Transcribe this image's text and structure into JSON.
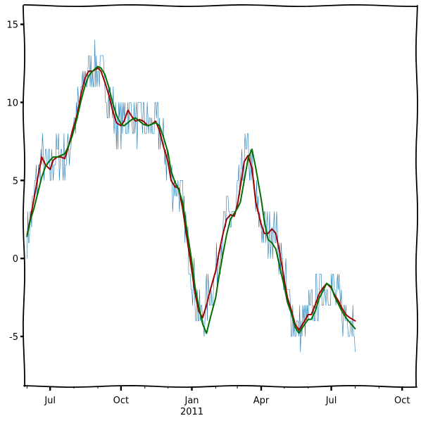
{
  "chart_data": {
    "type": "line",
    "style": "xkcd hand-drawn",
    "x_unit": "date",
    "x_start": "2010-05-28",
    "x_end": "2011-10-20",
    "xlim": [
      "2010-05-28",
      "2011-10-20"
    ],
    "ylim": [
      -8.2,
      16.2
    ],
    "grid": false,
    "legend": "none",
    "x_ticks": [
      {
        "date": "2010-07-01",
        "label": "Jul"
      },
      {
        "date": "2010-10-01",
        "label": "Oct"
      },
      {
        "date": "2011-01-01",
        "label": "Jan"
      },
      {
        "date": "2011-04-01",
        "label": "Apr"
      },
      {
        "date": "2011-07-01",
        "label": "Jul"
      },
      {
        "date": "2011-10-01",
        "label": "Oct"
      }
    ],
    "x_year_label": "2011",
    "y_ticks": [
      {
        "value": 15,
        "label": "15"
      },
      {
        "value": 10,
        "label": "10"
      },
      {
        "value": 5,
        "label": "5"
      },
      {
        "value": 0,
        "label": "0"
      },
      {
        "value": -5,
        "label": "-5"
      }
    ],
    "series": [
      {
        "color": "#1f77b4",
        "style": "thin noisy daily line",
        "points": [
          [
            "2010-06-01",
            1.5
          ],
          [
            "2010-06-05",
            2.5
          ],
          [
            "2010-06-10",
            3.8
          ],
          [
            "2010-06-15",
            5.2
          ],
          [
            "2010-06-20",
            6.5
          ],
          [
            "2010-06-25",
            6.0
          ],
          [
            "2010-07-01",
            5.7
          ],
          [
            "2010-07-05",
            6.3
          ],
          [
            "2010-07-10",
            6.5
          ],
          [
            "2010-07-15",
            6.5
          ],
          [
            "2010-07-20",
            6.4
          ],
          [
            "2010-07-25",
            7.2
          ],
          [
            "2010-07-30",
            8.2
          ],
          [
            "2010-08-05",
            9.2
          ],
          [
            "2010-08-10",
            10.5
          ],
          [
            "2010-08-15",
            11.5
          ],
          [
            "2010-08-20",
            12.0
          ],
          [
            "2010-08-25",
            12.0
          ],
          [
            "2010-09-01",
            12.2
          ],
          [
            "2010-09-05",
            12.0
          ],
          [
            "2010-09-10",
            11.3
          ],
          [
            "2010-09-15",
            10.5
          ],
          [
            "2010-09-20",
            9.5
          ],
          [
            "2010-09-25",
            8.7
          ],
          [
            "2010-10-01",
            8.5
          ],
          [
            "2010-10-05",
            8.8
          ],
          [
            "2010-10-10",
            9.5
          ],
          [
            "2010-10-15",
            9.1
          ],
          [
            "2010-10-20",
            8.8
          ],
          [
            "2010-10-25",
            8.9
          ],
          [
            "2010-10-30",
            8.8
          ],
          [
            "2010-11-05",
            8.5
          ],
          [
            "2010-11-10",
            8.6
          ],
          [
            "2010-11-15",
            8.8
          ],
          [
            "2010-11-20",
            8.2
          ],
          [
            "2010-11-25",
            7.2
          ],
          [
            "2010-12-01",
            6.2
          ],
          [
            "2010-12-05",
            5.0
          ],
          [
            "2010-12-10",
            4.6
          ],
          [
            "2010-12-15",
            4.5
          ],
          [
            "2010-12-20",
            3.2
          ],
          [
            "2010-12-25",
            1.5
          ],
          [
            "2011-01-01",
            -0.8
          ],
          [
            "2011-01-05",
            -2.2
          ],
          [
            "2011-01-10",
            -3.4
          ],
          [
            "2011-01-15",
            -3.8
          ],
          [
            "2011-01-20",
            -3.0
          ],
          [
            "2011-01-25",
            -2.0
          ],
          [
            "2011-02-01",
            -0.8
          ],
          [
            "2011-02-05",
            0.3
          ],
          [
            "2011-02-10",
            1.5
          ],
          [
            "2011-02-15",
            2.5
          ],
          [
            "2011-02-20",
            2.8
          ],
          [
            "2011-02-25",
            2.7
          ],
          [
            "2011-03-01",
            3.4
          ],
          [
            "2011-03-05",
            4.6
          ],
          [
            "2011-03-10",
            6.2
          ],
          [
            "2011-03-15",
            6.6
          ],
          [
            "2011-03-20",
            5.8
          ],
          [
            "2011-03-25",
            3.6
          ],
          [
            "2011-04-01",
            2.2
          ],
          [
            "2011-04-05",
            1.6
          ],
          [
            "2011-04-10",
            1.6
          ],
          [
            "2011-04-15",
            1.9
          ],
          [
            "2011-04-20",
            1.6
          ],
          [
            "2011-04-25",
            0.4
          ],
          [
            "2011-05-01",
            -1.4
          ],
          [
            "2011-05-05",
            -2.5
          ],
          [
            "2011-05-10",
            -3.3
          ],
          [
            "2011-05-15",
            -4.2
          ],
          [
            "2011-05-20",
            -4.6
          ],
          [
            "2011-05-25",
            -4.2
          ],
          [
            "2011-06-01",
            -3.6
          ],
          [
            "2011-06-05",
            -3.6
          ],
          [
            "2011-06-10",
            -3.0
          ],
          [
            "2011-06-15",
            -2.3
          ],
          [
            "2011-06-20",
            -1.9
          ],
          [
            "2011-06-25",
            -1.6
          ],
          [
            "2011-07-01",
            -1.9
          ],
          [
            "2011-07-05",
            -2.3
          ],
          [
            "2011-07-10",
            -2.7
          ],
          [
            "2011-07-15",
            -3.2
          ],
          [
            "2011-07-20",
            -3.6
          ],
          [
            "2011-07-25",
            -3.8
          ],
          [
            "2011-08-01",
            -4.0
          ]
        ]
      },
      {
        "color": "#a00000",
        "style": "smoothed line",
        "points": [
          [
            "2010-06-01",
            1.5
          ],
          [
            "2010-06-05",
            2.5
          ],
          [
            "2010-06-10",
            3.8
          ],
          [
            "2010-06-15",
            5.2
          ],
          [
            "2010-06-20",
            6.5
          ],
          [
            "2010-06-25",
            6.0
          ],
          [
            "2010-07-01",
            5.7
          ],
          [
            "2010-07-05",
            6.3
          ],
          [
            "2010-07-10",
            6.5
          ],
          [
            "2010-07-15",
            6.5
          ],
          [
            "2010-07-20",
            6.4
          ],
          [
            "2010-07-25",
            7.2
          ],
          [
            "2010-07-30",
            8.2
          ],
          [
            "2010-08-05",
            9.2
          ],
          [
            "2010-08-10",
            10.5
          ],
          [
            "2010-08-15",
            11.5
          ],
          [
            "2010-08-20",
            12.0
          ],
          [
            "2010-08-25",
            12.0
          ],
          [
            "2010-09-01",
            12.2
          ],
          [
            "2010-09-05",
            12.0
          ],
          [
            "2010-09-10",
            11.3
          ],
          [
            "2010-09-15",
            10.5
          ],
          [
            "2010-09-20",
            9.5
          ],
          [
            "2010-09-25",
            8.7
          ],
          [
            "2010-10-01",
            8.5
          ],
          [
            "2010-10-05",
            8.8
          ],
          [
            "2010-10-10",
            9.5
          ],
          [
            "2010-10-15",
            9.1
          ],
          [
            "2010-10-20",
            8.8
          ],
          [
            "2010-10-25",
            8.9
          ],
          [
            "2010-10-30",
            8.8
          ],
          [
            "2010-11-05",
            8.5
          ],
          [
            "2010-11-10",
            8.6
          ],
          [
            "2010-11-15",
            8.8
          ],
          [
            "2010-11-20",
            8.2
          ],
          [
            "2010-11-25",
            7.2
          ],
          [
            "2010-12-01",
            6.2
          ],
          [
            "2010-12-05",
            5.0
          ],
          [
            "2010-12-10",
            4.6
          ],
          [
            "2010-12-15",
            4.5
          ],
          [
            "2010-12-20",
            3.2
          ],
          [
            "2010-12-25",
            1.5
          ],
          [
            "2011-01-01",
            -0.8
          ],
          [
            "2011-01-05",
            -2.2
          ],
          [
            "2011-01-10",
            -3.4
          ],
          [
            "2011-01-15",
            -3.8
          ],
          [
            "2011-01-20",
            -3.0
          ],
          [
            "2011-01-25",
            -2.0
          ],
          [
            "2011-02-01",
            -0.8
          ],
          [
            "2011-02-05",
            0.3
          ],
          [
            "2011-02-10",
            1.5
          ],
          [
            "2011-02-15",
            2.5
          ],
          [
            "2011-02-20",
            2.8
          ],
          [
            "2011-02-25",
            2.7
          ],
          [
            "2011-03-01",
            3.4
          ],
          [
            "2011-03-05",
            4.6
          ],
          [
            "2011-03-10",
            6.2
          ],
          [
            "2011-03-15",
            6.6
          ],
          [
            "2011-03-20",
            5.8
          ],
          [
            "2011-03-25",
            3.6
          ],
          [
            "2011-04-01",
            2.2
          ],
          [
            "2011-04-05",
            1.6
          ],
          [
            "2011-04-10",
            1.6
          ],
          [
            "2011-04-15",
            1.9
          ],
          [
            "2011-04-20",
            1.6
          ],
          [
            "2011-04-25",
            0.4
          ],
          [
            "2011-05-01",
            -1.4
          ],
          [
            "2011-05-05",
            -2.5
          ],
          [
            "2011-05-10",
            -3.3
          ],
          [
            "2011-05-15",
            -4.2
          ],
          [
            "2011-05-20",
            -4.6
          ],
          [
            "2011-05-25",
            -4.2
          ],
          [
            "2011-06-01",
            -3.6
          ],
          [
            "2011-06-05",
            -3.6
          ],
          [
            "2011-06-10",
            -3.0
          ],
          [
            "2011-06-15",
            -2.3
          ],
          [
            "2011-06-20",
            -1.9
          ],
          [
            "2011-06-25",
            -1.6
          ],
          [
            "2011-07-01",
            -1.9
          ],
          [
            "2011-07-05",
            -2.3
          ],
          [
            "2011-07-10",
            -2.7
          ],
          [
            "2011-07-15",
            -3.2
          ],
          [
            "2011-07-20",
            -3.6
          ],
          [
            "2011-07-25",
            -3.8
          ],
          [
            "2011-08-01",
            -4.0
          ]
        ]
      },
      {
        "color": "#007000",
        "style": "smoothed line",
        "points": [
          [
            "2010-06-01",
            1.4
          ],
          [
            "2010-06-05",
            2.4
          ],
          [
            "2010-06-10",
            3.2
          ],
          [
            "2010-06-15",
            4.2
          ],
          [
            "2010-06-20",
            5.2
          ],
          [
            "2010-06-25",
            5.9
          ],
          [
            "2010-07-01",
            6.3
          ],
          [
            "2010-07-05",
            6.5
          ],
          [
            "2010-07-10",
            6.5
          ],
          [
            "2010-07-15",
            6.6
          ],
          [
            "2010-07-20",
            6.7
          ],
          [
            "2010-07-25",
            7.2
          ],
          [
            "2010-07-30",
            7.9
          ],
          [
            "2010-08-05",
            9.0
          ],
          [
            "2010-08-10",
            10.1
          ],
          [
            "2010-08-15",
            11.0
          ],
          [
            "2010-08-20",
            11.7
          ],
          [
            "2010-08-25",
            12.0
          ],
          [
            "2010-09-01",
            12.3
          ],
          [
            "2010-09-05",
            12.2
          ],
          [
            "2010-09-10",
            11.8
          ],
          [
            "2010-09-15",
            11.0
          ],
          [
            "2010-09-20",
            10.0
          ],
          [
            "2010-09-25",
            9.2
          ],
          [
            "2010-10-01",
            8.6
          ],
          [
            "2010-10-05",
            8.5
          ],
          [
            "2010-10-10",
            8.7
          ],
          [
            "2010-10-15",
            8.9
          ],
          [
            "2010-10-20",
            9.0
          ],
          [
            "2010-10-25",
            8.8
          ],
          [
            "2010-10-30",
            8.6
          ],
          [
            "2010-11-05",
            8.5
          ],
          [
            "2010-11-10",
            8.6
          ],
          [
            "2010-11-15",
            8.7
          ],
          [
            "2010-11-20",
            8.5
          ],
          [
            "2010-11-25",
            7.8
          ],
          [
            "2010-12-01",
            6.8
          ],
          [
            "2010-12-05",
            5.6
          ],
          [
            "2010-12-10",
            4.9
          ],
          [
            "2010-12-15",
            4.4
          ],
          [
            "2010-12-20",
            3.6
          ],
          [
            "2010-12-25",
            2.0
          ],
          [
            "2011-01-01",
            -0.2
          ],
          [
            "2011-01-05",
            -1.8
          ],
          [
            "2011-01-10",
            -3.1
          ],
          [
            "2011-01-15",
            -4.2
          ],
          [
            "2011-01-20",
            -4.8
          ],
          [
            "2011-01-25",
            -3.8
          ],
          [
            "2011-02-01",
            -2.5
          ],
          [
            "2011-02-05",
            -1.2
          ],
          [
            "2011-02-10",
            0.2
          ],
          [
            "2011-02-15",
            1.5
          ],
          [
            "2011-02-20",
            2.5
          ],
          [
            "2011-02-25",
            2.9
          ],
          [
            "2011-03-01",
            3.2
          ],
          [
            "2011-03-05",
            3.6
          ],
          [
            "2011-03-10",
            5.0
          ],
          [
            "2011-03-15",
            6.4
          ],
          [
            "2011-03-20",
            7.0
          ],
          [
            "2011-03-25",
            5.8
          ],
          [
            "2011-04-01",
            3.8
          ],
          [
            "2011-04-05",
            2.4
          ],
          [
            "2011-04-10",
            1.2
          ],
          [
            "2011-04-15",
            1.0
          ],
          [
            "2011-04-20",
            0.6
          ],
          [
            "2011-04-25",
            -0.5
          ],
          [
            "2011-05-01",
            -1.8
          ],
          [
            "2011-05-05",
            -2.8
          ],
          [
            "2011-05-10",
            -3.5
          ],
          [
            "2011-05-15",
            -4.4
          ],
          [
            "2011-05-20",
            -4.8
          ],
          [
            "2011-05-25",
            -4.4
          ],
          [
            "2011-06-01",
            -3.9
          ],
          [
            "2011-06-05",
            -3.9
          ],
          [
            "2011-06-10",
            -3.4
          ],
          [
            "2011-06-15",
            -2.6
          ],
          [
            "2011-06-20",
            -2.1
          ],
          [
            "2011-06-25",
            -1.6
          ],
          [
            "2011-07-01",
            -1.8
          ],
          [
            "2011-07-05",
            -2.4
          ],
          [
            "2011-07-10",
            -2.9
          ],
          [
            "2011-07-15",
            -3.4
          ],
          [
            "2011-07-20",
            -3.8
          ],
          [
            "2011-07-25",
            -4.1
          ],
          [
            "2011-08-01",
            -4.5
          ]
        ]
      }
    ]
  }
}
